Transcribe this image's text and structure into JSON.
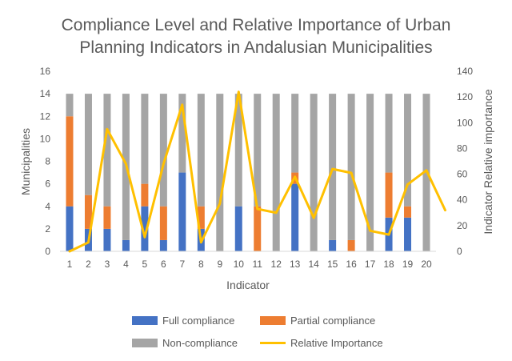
{
  "chart_data": {
    "type": "bar",
    "subtype": "stacked-bar-with-line-secondary-axis",
    "title_lines": [
      "Compliance Level and Relative Importance of Urban",
      "Planning Indicators in Andalusian Municipalities"
    ],
    "xlabel": "Indicator",
    "ylabel": "Municipalities",
    "y2label": "Indicator Relative importance",
    "categories": [
      "1",
      "2",
      "3",
      "4",
      "5",
      "6",
      "7",
      "8",
      "9",
      "10",
      "11",
      "12",
      "13",
      "14",
      "15",
      "16",
      "17",
      "18",
      "19",
      "20"
    ],
    "ylim": [
      0,
      16
    ],
    "yticks": [
      "0",
      "2",
      "4",
      "6",
      "8",
      "10",
      "12",
      "14",
      "16"
    ],
    "y2lim": [
      0,
      140
    ],
    "y2ticks": [
      "0",
      "20",
      "40",
      "60",
      "80",
      "100",
      "120",
      "140"
    ],
    "grid": false,
    "legend_position": "bottom",
    "series": [
      {
        "name": "Full compliance",
        "kind": "bar",
        "color": "#4472C4",
        "values": [
          4,
          2,
          2,
          1,
          4,
          1,
          7,
          2,
          0,
          4,
          0,
          0,
          6,
          0,
          1,
          0,
          0,
          3,
          3,
          0
        ]
      },
      {
        "name": "Partial compliance",
        "kind": "bar",
        "color": "#ED7D31",
        "values": [
          8,
          3,
          2,
          0,
          2,
          3,
          0,
          2,
          0,
          0,
          4,
          0,
          1,
          0,
          0,
          1,
          0,
          4,
          1,
          0
        ]
      },
      {
        "name": "Non-compliance",
        "kind": "bar",
        "color": "#A5A5A5",
        "values": [
          2,
          9,
          10,
          13,
          8,
          10,
          7,
          10,
          14,
          10,
          10,
          14,
          7,
          14,
          13,
          13,
          14,
          7,
          10,
          14
        ]
      },
      {
        "name": "Relative Importance",
        "kind": "line",
        "axis": "secondary",
        "color": "#FFC000",
        "x": [
          1,
          2,
          3,
          4,
          5,
          6,
          7,
          8,
          9,
          10,
          11,
          12,
          13,
          14,
          15,
          16,
          17,
          18,
          19,
          20,
          21
        ],
        "values": [
          0,
          7,
          95,
          68,
          11,
          68,
          114,
          7,
          37,
          124,
          33,
          30,
          58,
          26,
          64,
          61,
          16,
          13,
          52,
          63,
          32
        ]
      }
    ]
  }
}
